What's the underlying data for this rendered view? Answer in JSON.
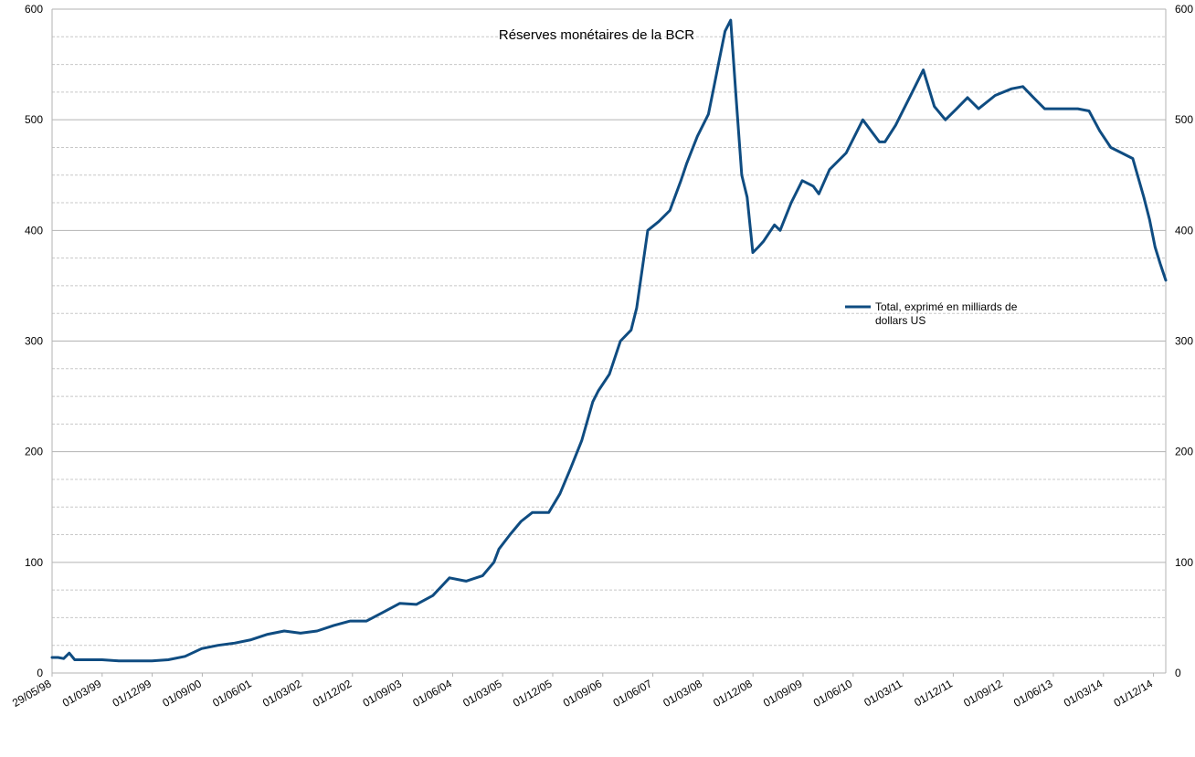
{
  "chart_data": {
    "type": "line",
    "title": "Réserves monétaires de la BCR",
    "xlabel": "",
    "ylabel": "",
    "ylim": [
      0,
      600
    ],
    "y_major_ticks": [
      0,
      100,
      200,
      300,
      400,
      500,
      600
    ],
    "y_minor_step": 25,
    "grid": true,
    "secondary_y_axis": true,
    "legend_position": "right-center",
    "x_tick_labels": [
      "29/05/98",
      "01/03/99",
      "01/12/99",
      "01/09/00",
      "01/06/01",
      "01/03/02",
      "01/12/02",
      "01/09/03",
      "01/06/04",
      "01/03/05",
      "01/12/05",
      "01/09/06",
      "01/06/07",
      "01/03/08",
      "01/12/08",
      "01/09/09",
      "01/06/10",
      "01/03/11",
      "01/12/11",
      "01/09/12",
      "01/06/13",
      "01/03/14",
      "01/12/14"
    ],
    "series": [
      {
        "name": "Total, exprimé en milliards de dollars US",
        "color": "#0f4c81",
        "x": [
          "1998-05-29",
          "1998-07-01",
          "1998-08-01",
          "1998-09-01",
          "1998-10-01",
          "1998-12-01",
          "1999-03-01",
          "1999-06-01",
          "1999-09-01",
          "1999-12-01",
          "2000-03-01",
          "2000-06-01",
          "2000-09-01",
          "2000-12-01",
          "2001-03-01",
          "2001-06-01",
          "2001-09-01",
          "2001-12-01",
          "2002-03-01",
          "2002-06-01",
          "2002-09-01",
          "2002-12-01",
          "2003-03-01",
          "2003-06-01",
          "2003-09-01",
          "2003-12-01",
          "2004-03-01",
          "2004-06-01",
          "2004-09-01",
          "2004-12-01",
          "2005-02-01",
          "2005-03-01",
          "2005-05-01",
          "2005-07-01",
          "2005-09-01",
          "2005-12-01",
          "2006-02-01",
          "2006-04-01",
          "2006-06-01",
          "2006-08-01",
          "2006-09-01",
          "2006-11-01",
          "2007-01-01",
          "2007-03-01",
          "2007-04-01",
          "2007-06-01",
          "2007-08-01",
          "2007-10-01",
          "2007-12-01",
          "2008-01-01",
          "2008-03-01",
          "2008-05-01",
          "2008-06-01",
          "2008-07-01",
          "2008-08-01",
          "2008-09-01",
          "2008-10-01",
          "2008-11-01",
          "2008-12-01",
          "2009-01-01",
          "2009-02-01",
          "2009-03-01",
          "2009-05-01",
          "2009-06-01",
          "2009-08-01",
          "2009-10-01",
          "2009-12-01",
          "2010-01-01",
          "2010-03-01",
          "2010-06-01",
          "2010-09-01",
          "2010-12-01",
          "2011-01-01",
          "2011-03-01",
          "2011-06-01",
          "2011-08-01",
          "2011-10-01",
          "2011-12-01",
          "2012-02-01",
          "2012-04-01",
          "2012-06-01",
          "2012-09-01",
          "2012-12-01",
          "2013-02-01",
          "2013-04-01",
          "2013-06-01",
          "2013-09-01",
          "2013-12-01",
          "2014-02-01",
          "2014-04-01",
          "2014-06-01",
          "2014-08-01",
          "2014-10-01",
          "2014-12-01",
          "2015-01-01",
          "2015-02-01",
          "2015-03-01",
          "2015-04-01"
        ],
        "values": [
          14,
          14,
          13,
          18,
          12,
          12,
          12,
          11,
          11,
          11,
          12,
          15,
          22,
          25,
          27,
          30,
          35,
          38,
          36,
          38,
          43,
          47,
          47,
          55,
          63,
          62,
          70,
          86,
          83,
          88,
          100,
          112,
          125,
          137,
          145,
          145,
          162,
          185,
          210,
          245,
          255,
          270,
          300,
          310,
          330,
          400,
          408,
          418,
          445,
          460,
          485,
          505,
          530,
          555,
          580,
          590,
          520,
          450,
          430,
          380,
          385,
          390,
          405,
          400,
          425,
          445,
          440,
          433,
          455,
          470,
          500,
          480,
          480,
          495,
          525,
          545,
          512,
          500,
          510,
          520,
          510,
          522,
          528,
          530,
          520,
          510,
          510,
          510,
          508,
          490,
          475,
          470,
          465,
          430,
          410,
          385,
          370,
          355
        ]
      }
    ]
  }
}
